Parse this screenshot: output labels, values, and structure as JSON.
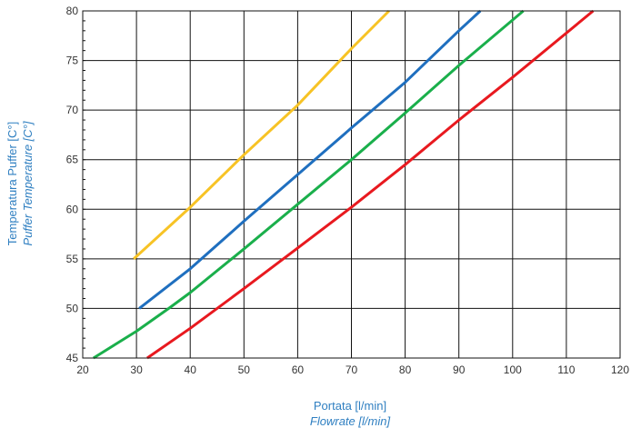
{
  "chart_data": {
    "type": "line",
    "xlabel": "Portata [l/min]",
    "xlabel_en": "Flowrate [l/min]",
    "ylabel": "Temperatura  Puffer [C°]",
    "ylabel_en": "Puffer Temperature [C°]",
    "xlim": [
      20,
      120
    ],
    "ylim": [
      45,
      80
    ],
    "xticks": [
      20,
      30,
      40,
      50,
      60,
      70,
      80,
      90,
      100,
      110,
      120
    ],
    "yticks": [
      45,
      50,
      55,
      60,
      65,
      70,
      75,
      80
    ],
    "grid": true,
    "series": [
      {
        "color": "#f7c325",
        "x": [
          29.5,
          40,
          50,
          60,
          70,
          77
        ],
        "y": [
          55,
          60.2,
          65.5,
          70.5,
          76.2,
          80
        ]
      },
      {
        "color": "#1f6fbf",
        "x": [
          30.5,
          40,
          50,
          60,
          70,
          80,
          90,
          94
        ],
        "y": [
          50,
          54,
          58.8,
          63.5,
          68.2,
          72.8,
          78,
          80
        ]
      },
      {
        "color": "#1aaf4b",
        "x": [
          22,
          30,
          36,
          40,
          50,
          60,
          70,
          80,
          90,
          102
        ],
        "y": [
          45,
          47.7,
          50,
          51.6,
          56,
          60.5,
          65,
          69.7,
          74.5,
          80
        ]
      },
      {
        "color": "#e8191f",
        "x": [
          32,
          40,
          50,
          60,
          70,
          80,
          90,
          100,
          115
        ],
        "y": [
          45,
          48,
          52,
          56.1,
          60.2,
          64.5,
          69,
          73.3,
          80
        ]
      }
    ]
  }
}
